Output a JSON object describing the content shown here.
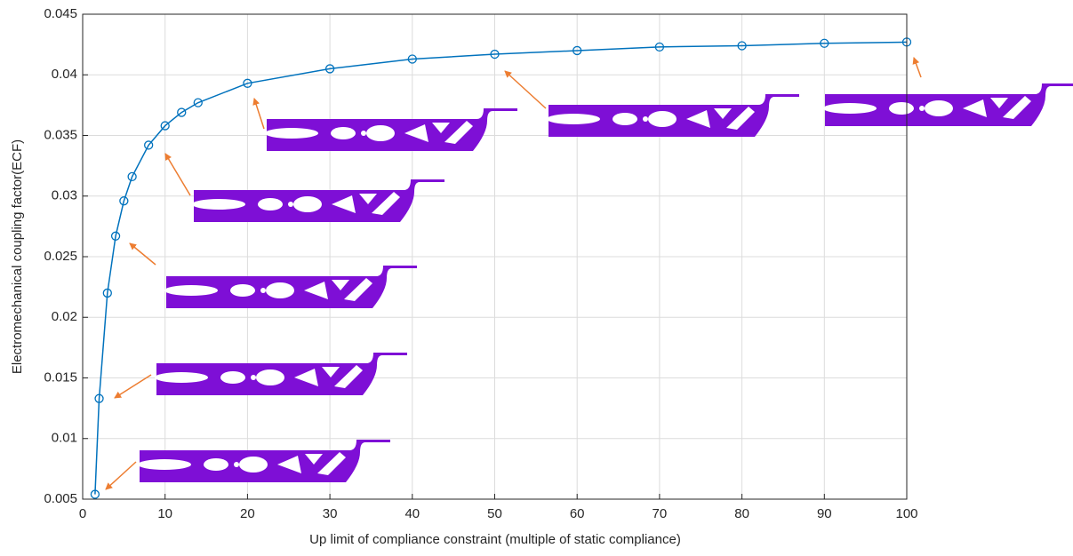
{
  "chart_data": {
    "type": "line",
    "x_label": "Up limit of compliance constraint (multiple of static compliance)",
    "y_label": "Electromechanical coupling factor(ECF)",
    "x": [
      1.5,
      2,
      3,
      4,
      5,
      6,
      8,
      10,
      12,
      14,
      20,
      30,
      40,
      50,
      60,
      70,
      80,
      90,
      100
    ],
    "series": [
      {
        "color": "#0072bd",
        "values": [
          0.0054,
          0.0133,
          0.022,
          0.0267,
          0.0296,
          0.0316,
          0.0342,
          0.0358,
          0.0369,
          0.0377,
          0.0393,
          0.0405,
          0.0413,
          0.0417,
          0.042,
          0.0423,
          0.0424,
          0.0426,
          0.0427
        ]
      }
    ],
    "xlim": [
      0,
      100
    ],
    "ylim": [
      0.005,
      0.045
    ],
    "xticks": [
      0,
      10,
      20,
      30,
      40,
      50,
      60,
      70,
      80,
      90,
      100
    ],
    "yticks": [
      0.005,
      0.01,
      0.015,
      0.02,
      0.025,
      0.03,
      0.035,
      0.04,
      0.045
    ],
    "grid": true
  }
}
